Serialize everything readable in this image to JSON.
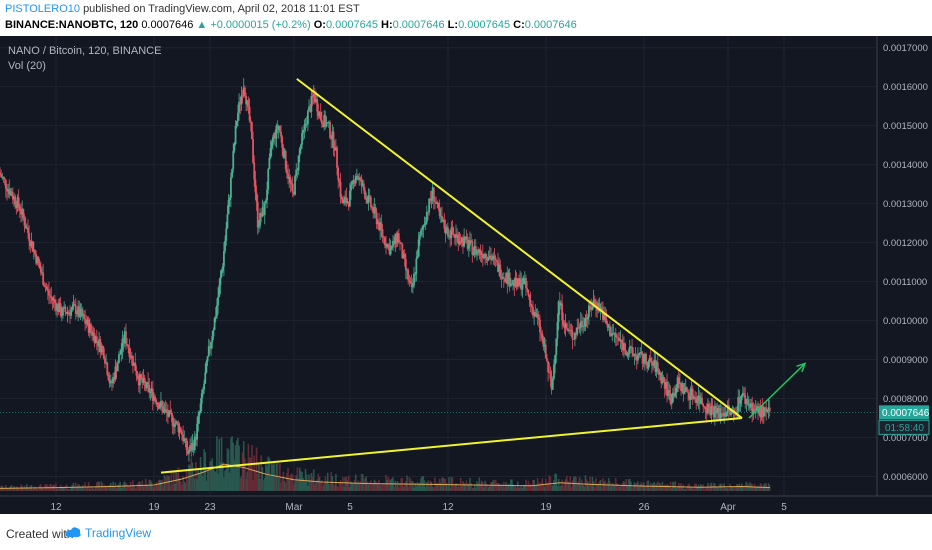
{
  "header": {
    "publisher": "PISTOLERO10",
    "published_text": "published on TradingView.com, April 02, 2018 11:01 EST",
    "symbol": "BINANCE:NANOBTC, 120",
    "last": "0.0007646",
    "change": "+0.0000015 (+0.2%)",
    "o_label": "O:",
    "o_value": "0.0007645",
    "h_label": "H:",
    "h_value": "0.0007646",
    "l_label": "L:",
    "l_value": "0.0007645",
    "c_label": "C:",
    "c_value": "0.0007646"
  },
  "legend": {
    "pair": "NANO / Bitcoin, 120, BINANCE",
    "volume": "Vol (20)"
  },
  "price_badge": "0.0007646",
  "countdown_badge": "01:58:40",
  "footer": {
    "created_with": "Created with",
    "brand": "TradingView"
  },
  "colors": {
    "background": "#131722",
    "up": "#4caf90",
    "down": "#e05561",
    "trendline": "#f2f22e",
    "arrow": "#22c55e",
    "price_badge": "#26a69a"
  },
  "chart_data": {
    "type": "candlestick",
    "ylim": [
      0.00055,
      0.00173
    ],
    "yticks": [
      0.0006,
      0.0007,
      0.0008,
      0.0009,
      0.001,
      0.0011,
      0.0012,
      0.0013,
      0.0014,
      0.0015,
      0.0016,
      0.0017
    ],
    "ytick_labels": [
      "0.0006000",
      "0.0007000",
      "0.0008000",
      "0.0009000",
      "0.0010000",
      "0.0011000",
      "0.0012000",
      "0.0013000",
      "0.0014000",
      "0.0015000",
      "0.0016000",
      "0.0017000"
    ],
    "xticks": [
      {
        "label": "12",
        "day": 12
      },
      {
        "label": "19",
        "day": 19
      },
      {
        "label": "23",
        "day": 23
      },
      {
        "label": "Mar",
        "day": 29
      },
      {
        "label": "5",
        "day": 33
      },
      {
        "label": "12",
        "day": 40
      },
      {
        "label": "19",
        "day": 47
      },
      {
        "label": "26",
        "day": 54
      },
      {
        "label": "Apr",
        "day": 60
      },
      {
        "label": "5",
        "day": 64
      }
    ],
    "xlim": [
      8.0,
      70.5
    ],
    "price_path": [
      [
        8.0,
        0.00138
      ],
      [
        9.5,
        0.00129
      ],
      [
        10.5,
        0.00118
      ],
      [
        11.5,
        0.00107
      ],
      [
        12.5,
        0.00102
      ],
      [
        13.5,
        0.00103
      ],
      [
        14.5,
        0.00098
      ],
      [
        15.5,
        0.00092
      ],
      [
        16.0,
        0.00083
      ],
      [
        17.0,
        0.00096
      ],
      [
        18.0,
        0.00085
      ],
      [
        19.0,
        0.00081
      ],
      [
        20.0,
        0.00076
      ],
      [
        21.0,
        0.00072
      ],
      [
        21.5,
        0.00066
      ],
      [
        22.0,
        0.00069
      ],
      [
        22.5,
        0.0008
      ],
      [
        23.0,
        0.00092
      ],
      [
        23.5,
        0.00102
      ],
      [
        24.0,
        0.00115
      ],
      [
        24.5,
        0.00133
      ],
      [
        25.0,
        0.00152
      ],
      [
        25.5,
        0.00161
      ],
      [
        26.0,
        0.00149
      ],
      [
        26.5,
        0.00125
      ],
      [
        27.0,
        0.00129
      ],
      [
        27.5,
        0.00146
      ],
      [
        28.0,
        0.0015
      ],
      [
        28.5,
        0.0014
      ],
      [
        29.0,
        0.00132
      ],
      [
        29.5,
        0.00144
      ],
      [
        30.0,
        0.00152
      ],
      [
        30.5,
        0.00158
      ],
      [
        31.0,
        0.00152
      ],
      [
        31.5,
        0.0015
      ],
      [
        32.0,
        0.00145
      ],
      [
        32.5,
        0.0013
      ],
      [
        33.0,
        0.00131
      ],
      [
        33.5,
        0.00138
      ],
      [
        34.0,
        0.00134
      ],
      [
        34.5,
        0.0013
      ],
      [
        35.0,
        0.00126
      ],
      [
        35.5,
        0.00121
      ],
      [
        36.0,
        0.00118
      ],
      [
        36.5,
        0.00122
      ],
      [
        37.0,
        0.00114
      ],
      [
        37.5,
        0.00107
      ],
      [
        38.0,
        0.0012
      ],
      [
        38.5,
        0.00127
      ],
      [
        39.0,
        0.00133
      ],
      [
        39.5,
        0.00126
      ],
      [
        40.0,
        0.00123
      ],
      [
        41.0,
        0.00121
      ],
      [
        42.0,
        0.00118
      ],
      [
        43.0,
        0.00117
      ],
      [
        44.0,
        0.00112
      ],
      [
        45.0,
        0.00109
      ],
      [
        45.5,
        0.0011
      ],
      [
        46.0,
        0.00104
      ],
      [
        46.5,
        0.001
      ],
      [
        47.0,
        0.00092
      ],
      [
        47.5,
        0.00082
      ],
      [
        48.0,
        0.00105
      ],
      [
        48.5,
        0.00098
      ],
      [
        49.0,
        0.00096
      ],
      [
        49.5,
        0.00099
      ],
      [
        50.0,
        0.00101
      ],
      [
        50.5,
        0.00105
      ],
      [
        51.0,
        0.00103
      ],
      [
        51.5,
        0.00098
      ],
      [
        52.0,
        0.00096
      ],
      [
        53.0,
        0.00092
      ],
      [
        54.0,
        0.0009
      ],
      [
        55.0,
        0.00088
      ],
      [
        55.5,
        0.00084
      ],
      [
        56.0,
        0.0008
      ],
      [
        56.5,
        0.00084
      ],
      [
        57.0,
        0.00082
      ],
      [
        58.0,
        0.0008
      ],
      [
        58.5,
        0.00078
      ],
      [
        59.0,
        0.00077
      ],
      [
        59.5,
        0.00076
      ],
      [
        60.0,
        0.00077
      ],
      [
        60.5,
        0.00076
      ],
      [
        61.0,
        0.00081
      ],
      [
        61.5,
        0.00079
      ],
      [
        62.0,
        0.00077
      ],
      [
        63.0,
        0.00076
      ]
    ],
    "volume_path": [
      [
        8.0,
        0.07
      ],
      [
        12.0,
        0.09
      ],
      [
        16.0,
        0.12
      ],
      [
        19.0,
        0.16
      ],
      [
        21.0,
        0.32
      ],
      [
        22.5,
        0.5
      ],
      [
        24.0,
        0.72
      ],
      [
        25.5,
        0.62
      ],
      [
        27.0,
        0.45
      ],
      [
        29.0,
        0.3
      ],
      [
        31.0,
        0.24
      ],
      [
        34.0,
        0.2
      ],
      [
        38.0,
        0.18
      ],
      [
        42.0,
        0.16
      ],
      [
        46.0,
        0.14
      ],
      [
        48.0,
        0.22
      ],
      [
        50.0,
        0.18
      ],
      [
        54.0,
        0.13
      ],
      [
        58.0,
        0.1
      ],
      [
        61.0,
        0.12
      ],
      [
        63.0,
        0.09
      ]
    ],
    "trendlines": [
      {
        "name": "upper-trendline",
        "points": [
          [
            29.2,
            0.00162
          ],
          [
            61.0,
            0.00075
          ]
        ]
      },
      {
        "name": "lower-trendline",
        "points": [
          [
            19.5,
            0.00061
          ],
          [
            61.0,
            0.00075
          ]
        ]
      }
    ],
    "projection_arrow": {
      "from": [
        61.5,
        0.00075
      ],
      "to": [
        65.5,
        0.00089
      ]
    },
    "current_price": 0.0007646
  }
}
